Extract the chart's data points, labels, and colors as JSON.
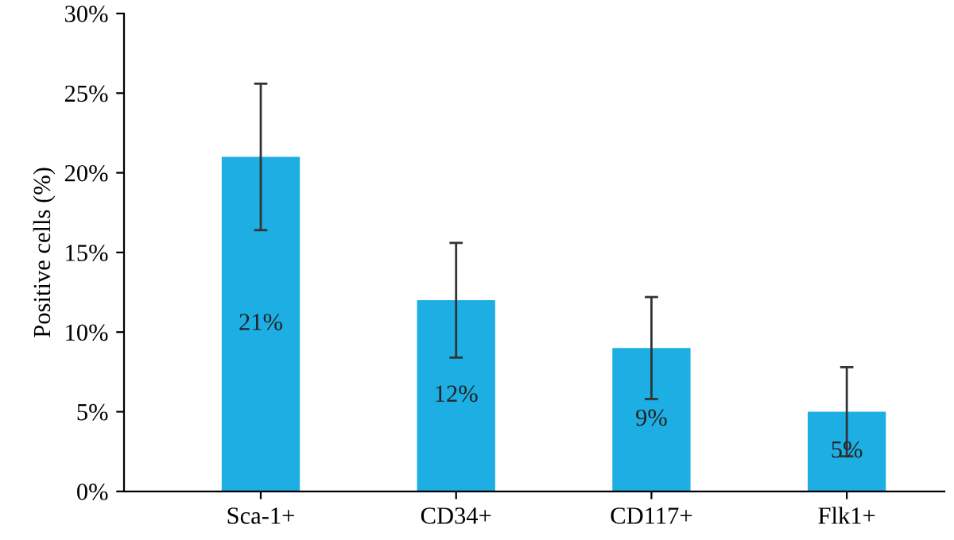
{
  "chart_data": {
    "type": "bar",
    "ylabel": "Positive cells (%)",
    "categories": [
      "Sca-1+",
      "CD34+",
      "CD117+",
      "Flk1+"
    ],
    "values": [
      21,
      12,
      9,
      5
    ],
    "errors": [
      4.6,
      3.6,
      3.2,
      2.8
    ],
    "value_labels": [
      "21%",
      "12%",
      "9%",
      "5%"
    ],
    "color": "#1daee3",
    "ylim": [
      0,
      30
    ],
    "yticks": [
      {
        "value": 0,
        "label": "0%"
      },
      {
        "value": 5,
        "label": "5%"
      },
      {
        "value": 10,
        "label": "10%"
      },
      {
        "value": 15,
        "label": "15%"
      },
      {
        "value": 20,
        "label": "20%"
      },
      {
        "value": 25,
        "label": "25%"
      },
      {
        "value": 30,
        "label": "30%"
      }
    ],
    "grid": false
  }
}
